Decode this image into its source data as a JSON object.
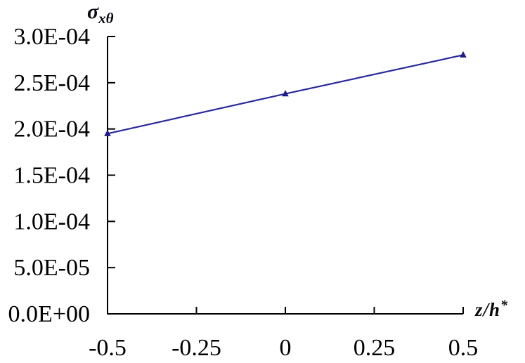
{
  "chart_data": {
    "type": "line",
    "title": "",
    "xlabel": "z/h*",
    "ylabel": "σ_xθ",
    "x": [
      -0.5,
      0,
      0.5
    ],
    "series": [
      {
        "name": "σ_xθ",
        "values": [
          0.000195,
          0.000238,
          0.00028
        ]
      }
    ],
    "xlim": [
      -0.5,
      0.5
    ],
    "ylim": [
      0,
      0.0003
    ],
    "x_tick_values": [
      -0.5,
      -0.25,
      0,
      0.25,
      0.5
    ],
    "x_tick_labels": [
      "-0.5",
      "-0.25",
      "0",
      "0.25",
      "0.5"
    ],
    "y_tick_values": [
      0,
      5e-05,
      0.0001,
      0.00015,
      0.0002,
      0.00025,
      0.0003
    ],
    "y_tick_labels": [
      "0.0E+00",
      "5.0E-05",
      "1.0E-04",
      "1.5E-04",
      "2.0E-04",
      "2.5E-04",
      "3.0E-04"
    ],
    "grid": false,
    "legend": "none",
    "marker": "triangle-up",
    "line_color": "#2a2a9c",
    "marker_color": "#1b1b8a",
    "axis_color": "#000000",
    "text_color": "#000000",
    "background_color": "#ffffff"
  },
  "labels": {
    "y_axis_title": {
      "base": "σ",
      "sub": "xθ"
    },
    "x_axis_title": {
      "base": "z/h",
      "sup": "*"
    }
  }
}
